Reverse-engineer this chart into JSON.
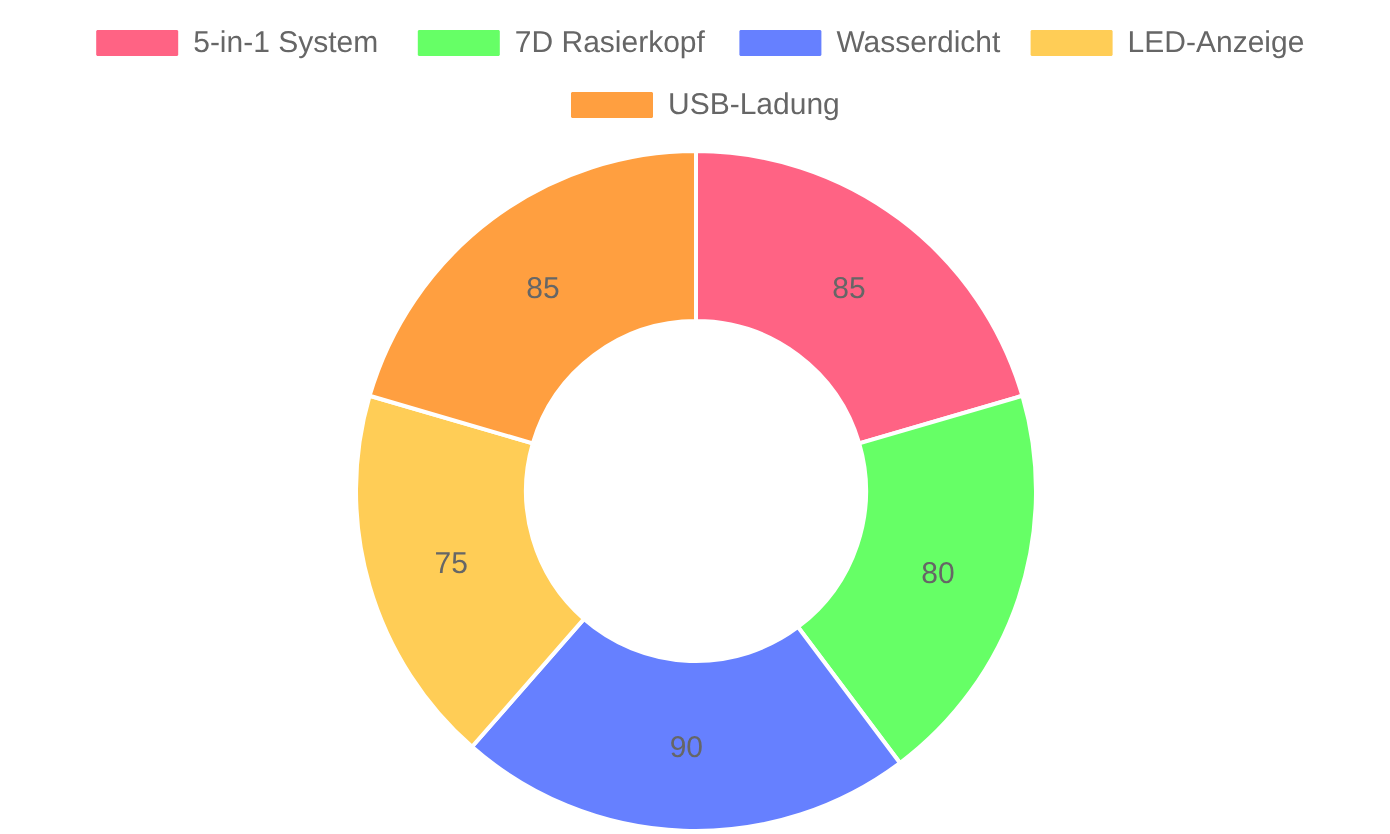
{
  "chart_data": {
    "type": "donut",
    "categories": [
      "5-in-1 System",
      "7D Rasierkopf",
      "Wasserdicht",
      "LED-Anzeige",
      "USB-Ladung"
    ],
    "values": [
      85,
      80,
      90,
      75,
      85
    ],
    "colors": [
      "#ff6384",
      "#66ff66",
      "#6680ff",
      "#ffcd56",
      "#ff9f40"
    ],
    "data_labels": true,
    "legend": "top"
  }
}
